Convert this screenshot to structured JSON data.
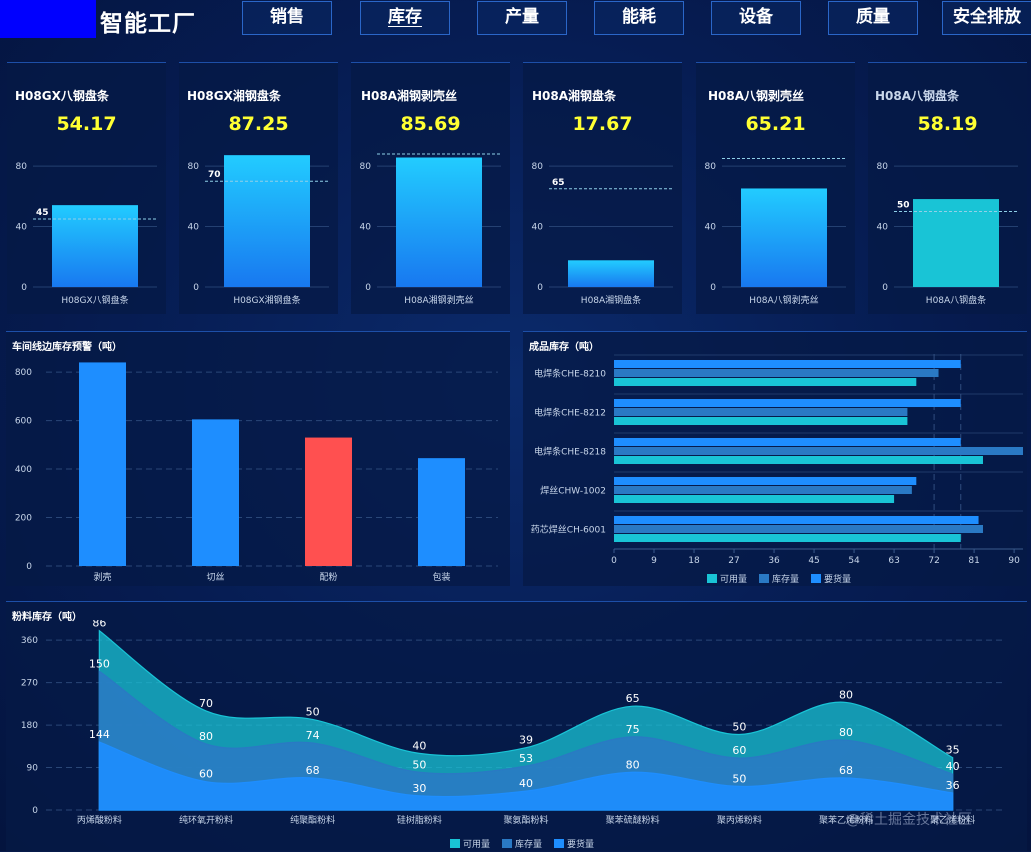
{
  "header": {
    "title": "智能工厂",
    "tabs": [
      {
        "label": "销售"
      },
      {
        "label": "库存",
        "active": true
      },
      {
        "label": "产量"
      },
      {
        "label": "能耗"
      },
      {
        "label": "设备"
      },
      {
        "label": "质量"
      },
      {
        "label": "安全排放"
      }
    ]
  },
  "colors": {
    "accent_yellow": "#ffff33",
    "bar_blue": "#1e8eff",
    "bar_cyan": "#19c4d6",
    "bar_alert": "#ff5050",
    "grid": "#3a5a8c"
  },
  "kpis": [
    {
      "name": "H08GX八钢盘条",
      "value": "54.17"
    },
    {
      "name": "H08GX湘钢盘条",
      "value": "87.25"
    },
    {
      "name": "H08A湘钢剥壳丝",
      "value": "85.69"
    },
    {
      "name": "H08A湘钢盘条",
      "value": "17.67"
    },
    {
      "name": "H08A八钢剥壳丝",
      "value": "65.21"
    },
    {
      "name": "H08A八钢盘条",
      "value": "58.19"
    }
  ],
  "sections": {
    "line_side": "车间线边库存预警（吨）",
    "finished": "成品库存（吨）",
    "powder": "粉料库存（吨）"
  },
  "watermark": "@稀土掘金技术社区",
  "chart_data": [
    {
      "type": "bar",
      "categories": [
        "H08GX八钢盘条"
      ],
      "values": [
        54.17
      ],
      "threshold": 45,
      "threshold_label": "45",
      "y_ticks": [
        "0",
        "40",
        "80"
      ],
      "ylim": [
        0,
        90
      ],
      "color": "gradient-blue"
    },
    {
      "type": "bar",
      "categories": [
        "H08GX湘钢盘条"
      ],
      "values": [
        87.25
      ],
      "threshold": 70,
      "threshold_label": "70",
      "y_ticks": [
        "0",
        "40",
        "80"
      ],
      "ylim": [
        0,
        90
      ],
      "color": "gradient-blue"
    },
    {
      "type": "bar",
      "categories": [
        "H08A湘钢剥壳丝"
      ],
      "values": [
        85.69
      ],
      "threshold": 88,
      "threshold_label": "",
      "y_ticks": [
        "0",
        "40",
        "80"
      ],
      "ylim": [
        0,
        90
      ],
      "color": "gradient-blue"
    },
    {
      "type": "bar",
      "categories": [
        "H08A湘钢盘条"
      ],
      "values": [
        17.67
      ],
      "threshold": 65,
      "threshold_label": "65",
      "y_ticks": [
        "0",
        "40",
        "80"
      ],
      "ylim": [
        0,
        90
      ],
      "color": "gradient-blue"
    },
    {
      "type": "bar",
      "categories": [
        "H08A八钢剥壳丝"
      ],
      "values": [
        65.21
      ],
      "threshold": 85,
      "threshold_label": "",
      "y_ticks": [
        "0",
        "40",
        "80"
      ],
      "ylim": [
        0,
        90
      ],
      "color": "gradient-blue"
    },
    {
      "type": "bar",
      "categories": [
        "H08A八钢盘条"
      ],
      "values": [
        58.19
      ],
      "threshold": 50,
      "threshold_label": "50",
      "y_ticks": [
        "0",
        "40",
        "80"
      ],
      "ylim": [
        0,
        90
      ],
      "color": "#19c4d6"
    },
    {
      "type": "bar",
      "categories": [
        "剥壳",
        "切丝",
        "配粉",
        "包装"
      ],
      "values": [
        840,
        605,
        530,
        445
      ],
      "alert_index": 2,
      "y_ticks": [
        "0",
        "200",
        "400",
        "600",
        "800"
      ],
      "ylim": [
        0,
        850
      ]
    },
    {
      "type": "bar",
      "orientation": "horizontal",
      "categories": [
        "电焊条CHE-8210",
        "电焊条CHE-8212",
        "电焊条CHE-8218",
        "焊丝CHW-1002",
        "药芯焊丝CH-6001"
      ],
      "series": [
        {
          "name": "可用量",
          "color": "#19c4d6",
          "values": [
            68,
            66,
            83,
            63,
            78
          ]
        },
        {
          "name": "库存量",
          "color": "#2a79c4",
          "values": [
            73,
            66,
            92,
            67,
            83
          ]
        },
        {
          "name": "要货量",
          "color": "#1e8eff",
          "values": [
            78,
            78,
            78,
            68,
            82
          ]
        }
      ],
      "x_ticks": [
        "0",
        "9",
        "18",
        "27",
        "36",
        "45",
        "54",
        "63",
        "72",
        "81",
        "90"
      ],
      "xlim": [
        0,
        92
      ],
      "reference_lines": [
        72,
        78
      ]
    },
    {
      "type": "area",
      "stacked": true,
      "categories": [
        "丙烯酸粉料",
        "纯环氧开粉料",
        "纯聚酯粉料",
        "硅树脂粉料",
        "聚氨酯粉料",
        "聚苯硫醚粉料",
        "聚丙烯粉料",
        "聚苯乙烯粉料",
        "聚乙烯粉料"
      ],
      "series": [
        {
          "name": "可用量",
          "color": "#19c4d6",
          "values": [
            86,
            70,
            50,
            40,
            39,
            65,
            50,
            80,
            35
          ]
        },
        {
          "name": "库存量",
          "color": "#2a79c4",
          "values": [
            150,
            80,
            74,
            50,
            53,
            75,
            60,
            80,
            40
          ]
        },
        {
          "name": "要货量",
          "color": "#1e8eff",
          "values": [
            144,
            60,
            68,
            30,
            40,
            80,
            50,
            68,
            36
          ]
        }
      ],
      "y_ticks": [
        "0",
        "90",
        "180",
        "270",
        "360"
      ],
      "ylim": [
        0,
        390
      ]
    }
  ]
}
